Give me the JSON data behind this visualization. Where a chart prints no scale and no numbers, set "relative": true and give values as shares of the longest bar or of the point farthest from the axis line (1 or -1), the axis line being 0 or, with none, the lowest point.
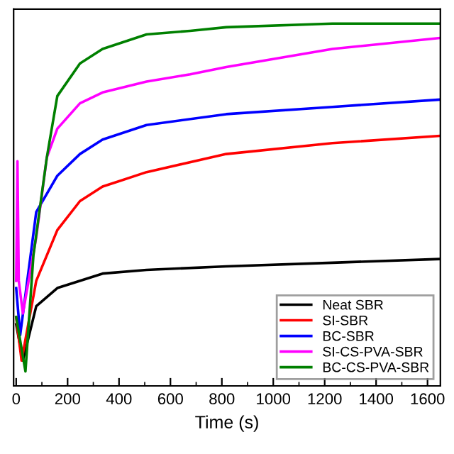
{
  "chart_data": {
    "type": "line",
    "xlabel": "Time (s)",
    "relative": true,
    "xlim": [
      -10,
      1650
    ],
    "xticks": [
      0,
      200,
      400,
      600,
      800,
      1000,
      1200,
      1400,
      1600
    ],
    "legend": "bottom right",
    "grid": false,
    "series": [
      {
        "name": "Neat SBR",
        "color": "#000000",
        "x": [
          0,
          26,
          78,
          160,
          336,
          507,
          817,
          1230,
          1644
        ],
        "values": [
          0.17,
          0.07,
          0.22,
          0.27,
          0.31,
          0.32,
          0.33,
          0.34,
          0.35
        ]
      },
      {
        "name": "SI-SBR",
        "color": "#ff0000",
        "x": [
          0,
          21,
          78,
          160,
          248,
          336,
          507,
          817,
          1230,
          1644
        ],
        "values": [
          0.19,
          0.07,
          0.29,
          0.43,
          0.51,
          0.55,
          0.59,
          0.64,
          0.67,
          0.69
        ]
      },
      {
        "name": "BC-SBR",
        "color": "#0000ff",
        "x": [
          0,
          15.5,
          78,
          160,
          248,
          336,
          507,
          817,
          1230,
          1644
        ],
        "values": [
          0.27,
          0.14,
          0.48,
          0.58,
          0.64,
          0.68,
          0.72,
          0.75,
          0.77,
          0.79
        ]
      },
      {
        "name": "SI-CS-PVA-SBR",
        "color": "#ff00ff",
        "x": [
          0,
          5,
          10,
          26,
          78,
          119,
          160,
          248,
          336,
          507,
          677,
          817,
          1230,
          1644
        ],
        "values": [
          0.29,
          0.62,
          0.29,
          0.2,
          0.41,
          0.63,
          0.71,
          0.78,
          0.81,
          0.84,
          0.86,
          0.88,
          0.93,
          0.96
        ]
      },
      {
        "name": "BC-CS-PVA-SBR",
        "color": "#008000",
        "x": [
          0,
          36,
          67,
          119,
          160,
          248,
          336,
          507,
          677,
          817,
          1230,
          1644
        ],
        "values": [
          0.19,
          0.04,
          0.36,
          0.63,
          0.8,
          0.89,
          0.93,
          0.97,
          0.98,
          0.99,
          1.0,
          1.0
        ]
      }
    ]
  }
}
